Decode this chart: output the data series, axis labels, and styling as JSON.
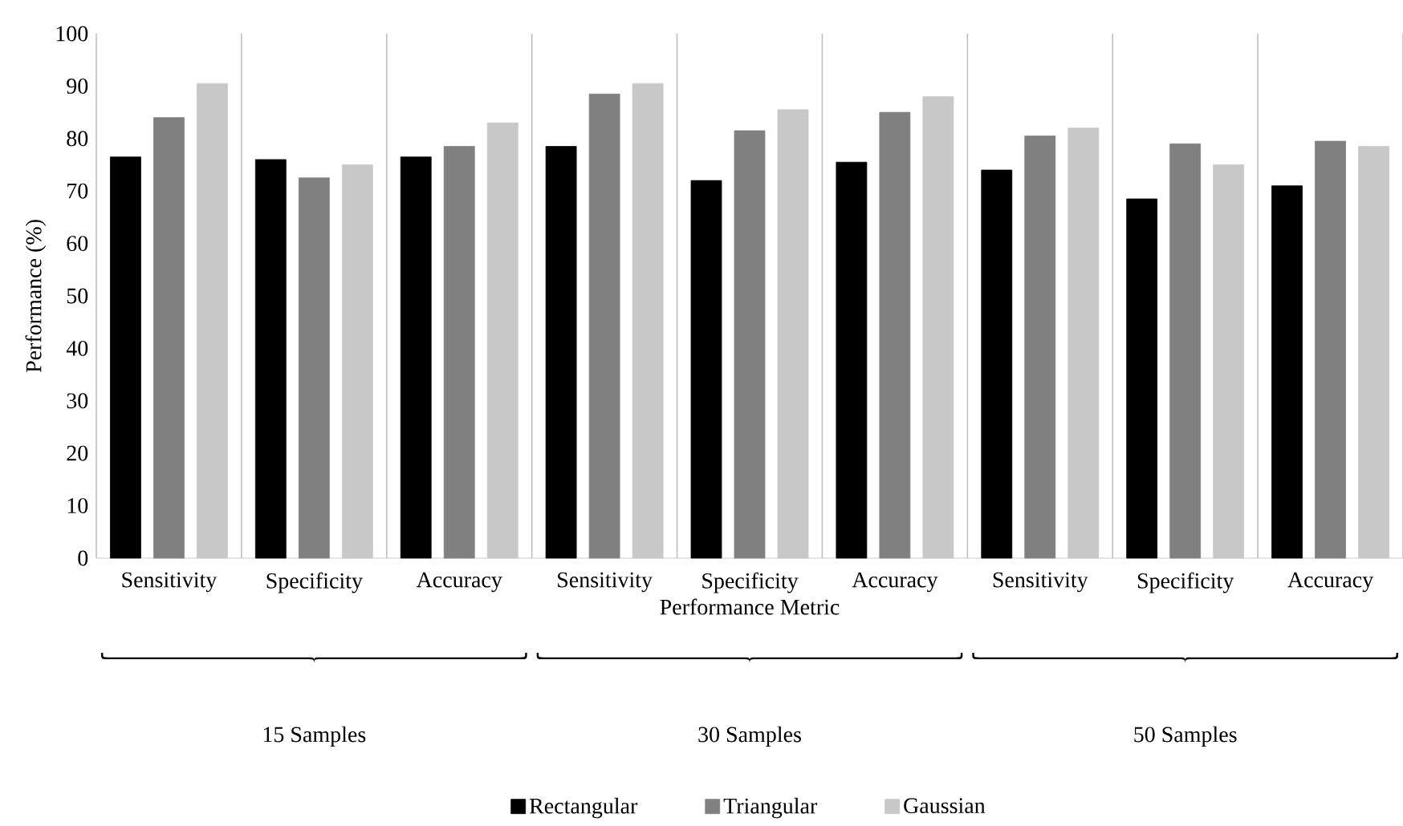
{
  "chart_data": {
    "type": "bar",
    "xlabel": "Performance Metric",
    "ylabel": "Performance (%)",
    "categories": [
      "Sensitivity",
      "Specificity",
      "Accuracy",
      "Sensitivity",
      "Specificity",
      "Accuracy",
      "Sensitivity",
      "Specificity",
      "Accuracy"
    ],
    "series": [
      {
        "name": "Rectangular",
        "color": "#000000",
        "values": [
          76.5,
          76,
          76.5,
          78.5,
          72,
          75.5,
          74,
          68.5,
          71
        ]
      },
      {
        "name": "Triangular",
        "color": "#808080",
        "values": [
          84,
          72.5,
          78.5,
          88.5,
          81.5,
          85,
          80.5,
          79,
          79.5
        ]
      },
      {
        "name": "Gaussian",
        "color": "#c8c8c8",
        "values": [
          90.5,
          75,
          83,
          90.5,
          85.5,
          88,
          82,
          75,
          78.5
        ]
      }
    ],
    "annotations": [
      "15 Samples",
      "30 Samples",
      "50 Samples"
    ],
    "ylim": [
      0,
      100
    ],
    "yticks": [
      0,
      10,
      20,
      30,
      40,
      50,
      60,
      70,
      80,
      90,
      100
    ],
    "grid": "x",
    "legend": "bottom"
  }
}
